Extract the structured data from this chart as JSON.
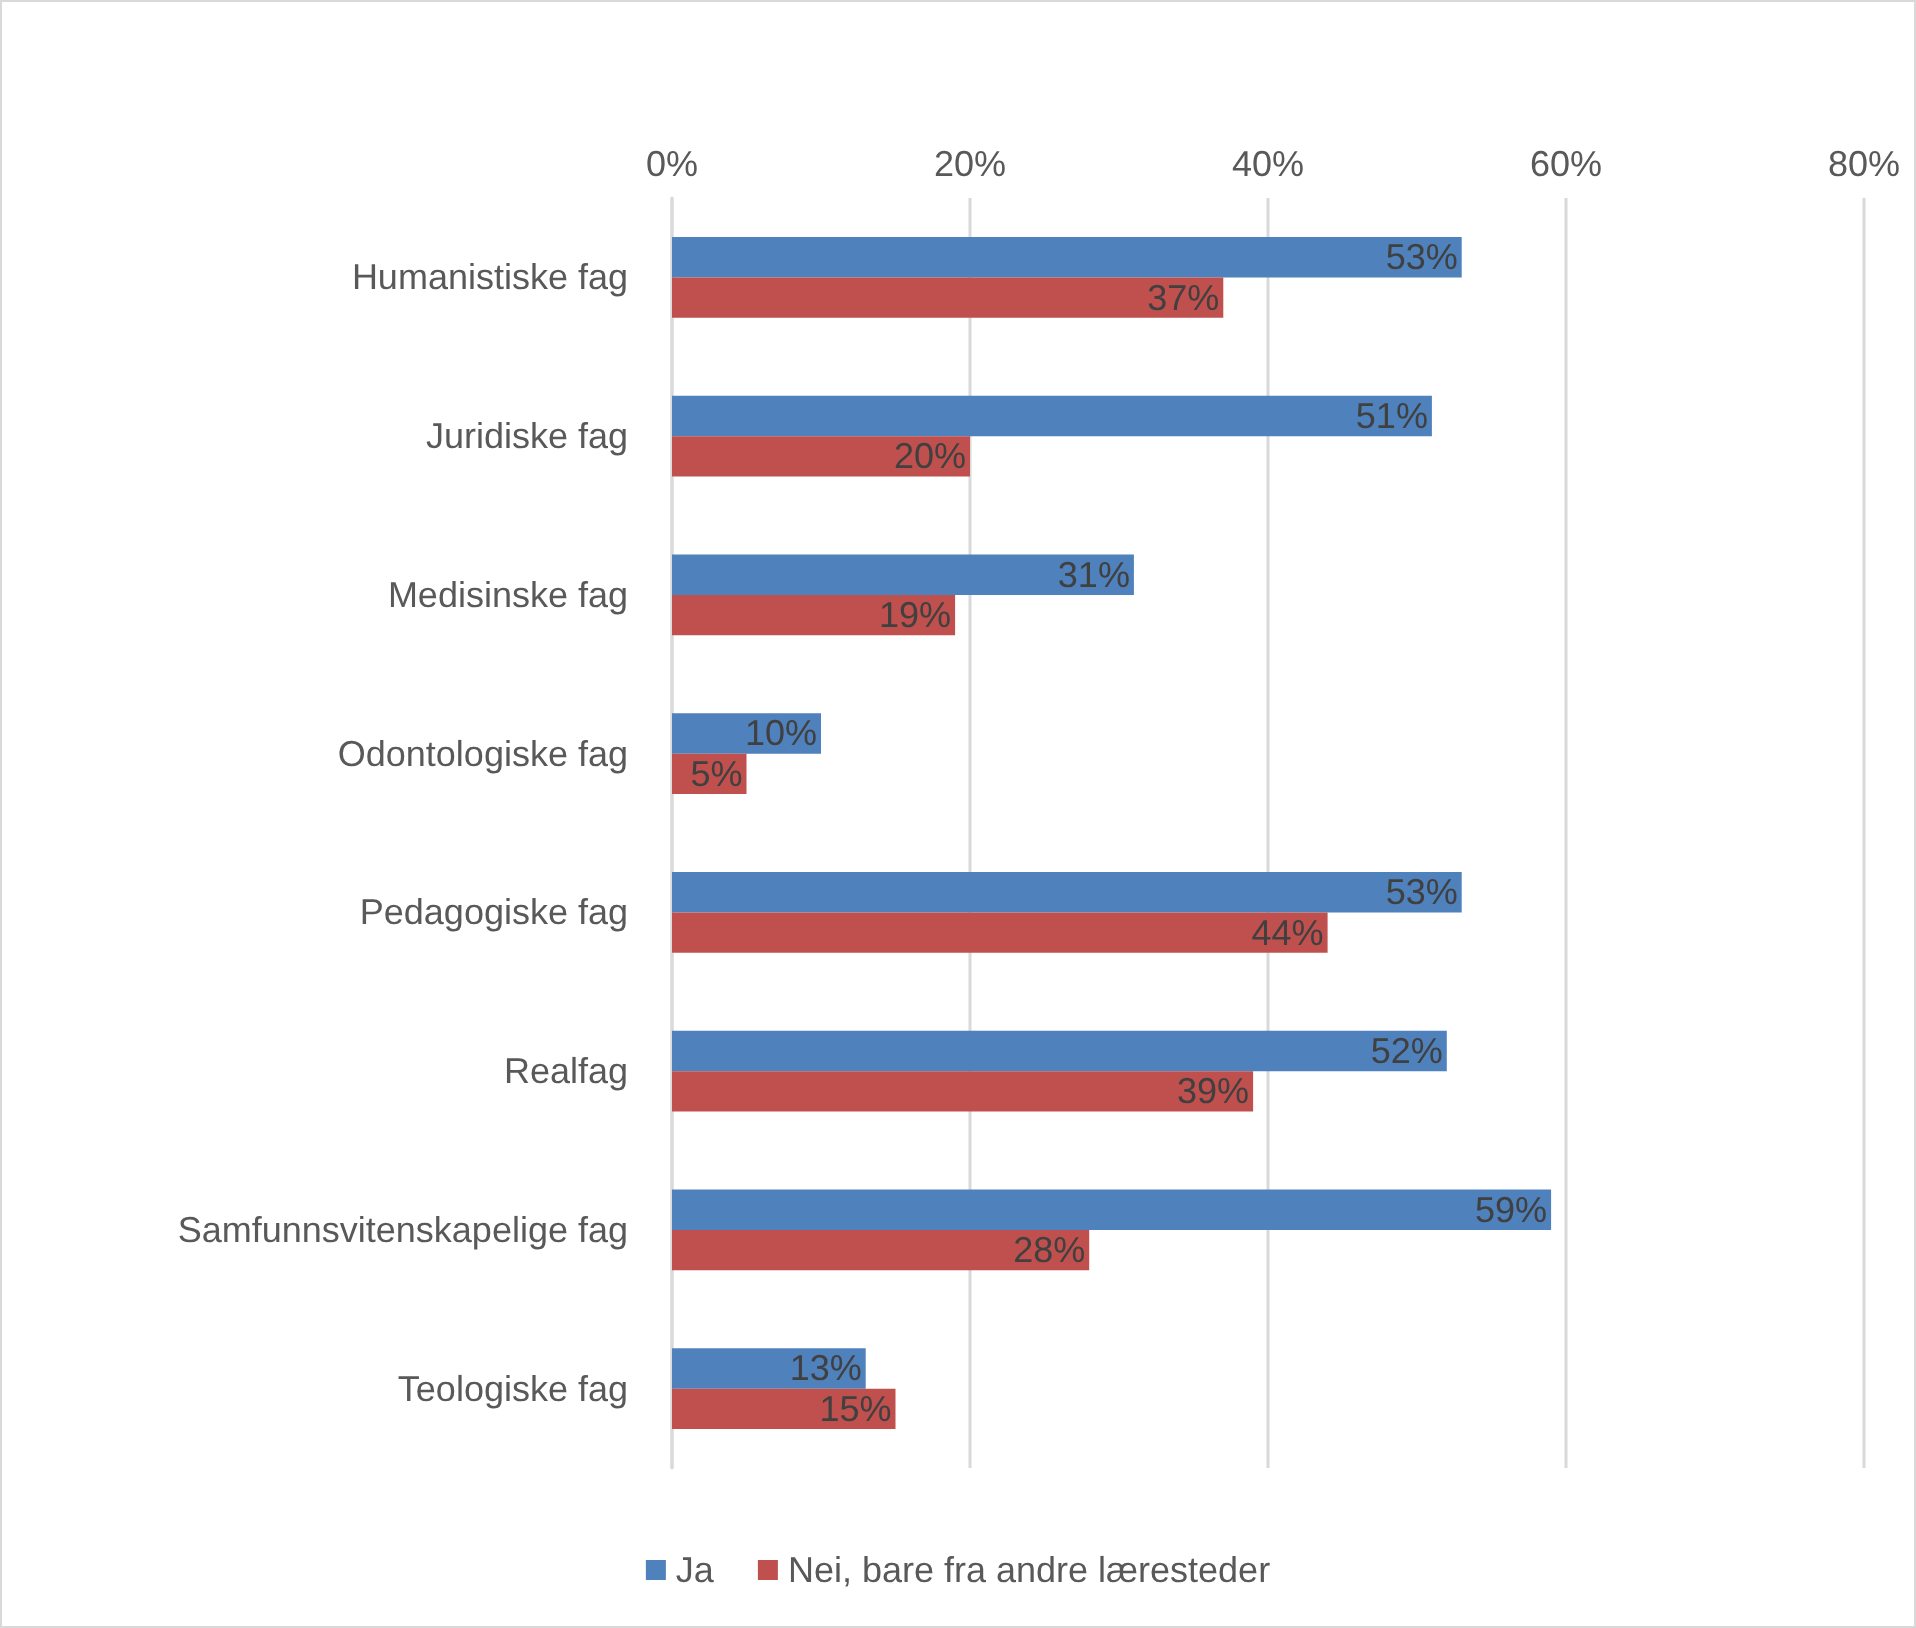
{
  "chart_data": {
    "type": "bar",
    "orientation": "horizontal",
    "categories": [
      "Humanistiske fag",
      "Juridiske fag",
      "Medisinske fag",
      "Odontologiske fag",
      "Pedagogiske fag",
      "Realfag",
      "Samfunnsvitenskapelige fag",
      "Teologiske fag"
    ],
    "series": [
      {
        "name": "Ja",
        "color": "#4f81bd",
        "values": [
          53,
          51,
          31,
          10,
          53,
          52,
          59,
          13
        ],
        "value_labels": [
          "53%",
          "51%",
          "31%",
          "10%",
          "53%",
          "52%",
          "59%",
          "13%"
        ]
      },
      {
        "name": "Nei, bare fra andre læresteder",
        "color": "#c0504d",
        "values": [
          37,
          20,
          19,
          5,
          44,
          39,
          28,
          15
        ],
        "value_labels": [
          "37%",
          "20%",
          "19%",
          "5%",
          "44%",
          "39%",
          "28%",
          "15%"
        ]
      }
    ],
    "xlim": [
      0,
      80
    ],
    "xticks": [
      {
        "value": 0,
        "label": "0%"
      },
      {
        "value": 20,
        "label": "20%"
      },
      {
        "value": 40,
        "label": "40%"
      },
      {
        "value": 60,
        "label": "60%"
      },
      {
        "value": 80,
        "label": "80%"
      }
    ],
    "grid": "x",
    "legend": "bottom"
  }
}
